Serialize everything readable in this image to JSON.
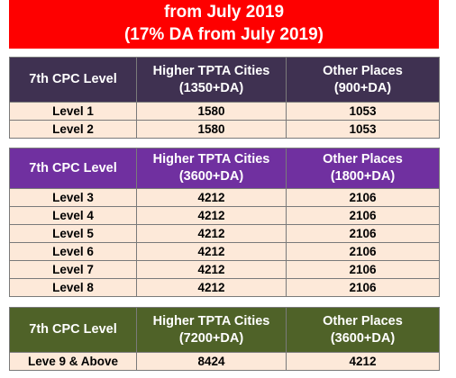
{
  "banner": {
    "line1": "from July 2019",
    "line2": "(17% DA from July 2019)"
  },
  "table1": {
    "headers": {
      "level": "7th CPC Level",
      "higher_title": "Higher TPTA Cities",
      "higher_rate": "(1350+DA)",
      "other_title": "Other Places",
      "other_rate": "(900+DA)"
    },
    "rows": [
      {
        "level": "Level 1",
        "higher": "1580",
        "other": "1053"
      },
      {
        "level": "Level 2",
        "higher": "1580",
        "other": "1053"
      }
    ]
  },
  "table2": {
    "headers": {
      "level": "7th CPC Level",
      "higher_title": "Higher TPTA Cities",
      "higher_rate": "(3600+DA)",
      "other_title": "Other Places",
      "other_rate": "(1800+DA)"
    },
    "rows": [
      {
        "level": "Level 3",
        "higher": "4212",
        "other": "2106"
      },
      {
        "level": "Level 4",
        "higher": "4212",
        "other": "2106"
      },
      {
        "level": "Level 5",
        "higher": "4212",
        "other": "2106"
      },
      {
        "level": "Level 6",
        "higher": "4212",
        "other": "2106"
      },
      {
        "level": "Level 7",
        "higher": "4212",
        "other": "2106"
      },
      {
        "level": "Level 8",
        "higher": "4212",
        "other": "2106"
      }
    ]
  },
  "table3": {
    "headers": {
      "level": "7th CPC Level",
      "higher_title": "Higher TPTA Cities",
      "higher_rate": "(7200+DA)",
      "other_title": "Other Places",
      "other_rate": "(3600+DA)"
    },
    "rows": [
      {
        "level": "Leve 9 & Above",
        "higher": "8424",
        "other": "4212"
      }
    ]
  },
  "colors": {
    "banner": "#fe0000",
    "table1_header": "#3f3151",
    "table2_header": "#7030a0",
    "table3_header": "#4f6228",
    "row_fill": "#fde9d9"
  }
}
